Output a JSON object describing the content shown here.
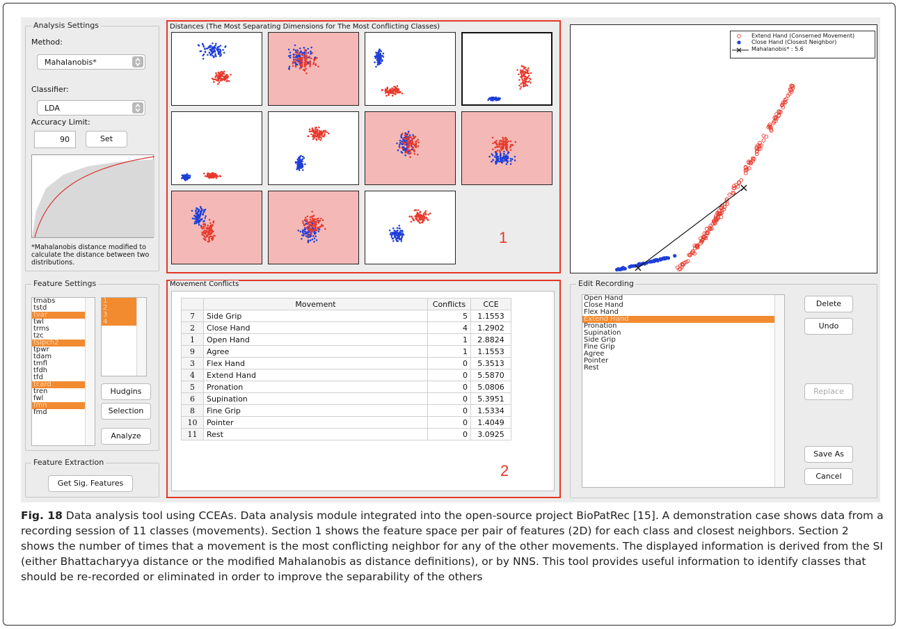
{
  "analysis": {
    "title": "Analysis Settings",
    "method_label": "Method:",
    "method_value": "Mahalanobis*",
    "classifier_label": "Classifier:",
    "classifier_value": "LDA",
    "accuracy_label": "Accuracy Limit:",
    "accuracy_value": "90",
    "set_button": "Set",
    "note": "*Mahalanobis distance modified to calculate the distance between two distributions."
  },
  "feature_settings": {
    "title": "Feature Settings",
    "features": [
      {
        "name": "tmabs",
        "selected": false
      },
      {
        "name": "tstd",
        "selected": false
      },
      {
        "name": "tvar",
        "selected": true
      },
      {
        "name": "twl",
        "selected": false
      },
      {
        "name": "trms",
        "selected": false
      },
      {
        "name": "tzc",
        "selected": false
      },
      {
        "name": "tslpch2",
        "selected": true
      },
      {
        "name": "tpwr",
        "selected": false
      },
      {
        "name": "tdam",
        "selected": false
      },
      {
        "name": "tmfl",
        "selected": false
      },
      {
        "name": "tfdh",
        "selected": false
      },
      {
        "name": "tfd",
        "selected": false
      },
      {
        "name": "tcard",
        "selected": true
      },
      {
        "name": "tren",
        "selected": false
      },
      {
        "name": "fwl",
        "selected": false
      },
      {
        "name": "fmn",
        "selected": true
      },
      {
        "name": "fmd",
        "selected": false
      }
    ],
    "selected_indices": [
      "1",
      "2",
      "3",
      "4"
    ],
    "hudgins_button": "Hudgins",
    "selection_button": "Selection",
    "analyze_button": "Analyze"
  },
  "feature_extraction": {
    "title": "Feature Extraction",
    "button": "Get Sig. Features"
  },
  "distances": {
    "title": "Distances (The Most Separating Dimensions for The Most Conflicting Classes)",
    "section_number": "1"
  },
  "mahalanobis_plot": {
    "legend": [
      "Extend Hand (Conserned Movement)",
      "Close Hand (Closest Neighbor)",
      "Mahalanobis* : 5.6"
    ],
    "colors": {
      "extend": "#e8392c",
      "close": "#1f3fd8",
      "line": "#111111"
    }
  },
  "movement_conflicts": {
    "title": "Movement Conflicts",
    "section_number": "2",
    "columns": [
      "",
      "Movement",
      "Conflicts",
      "CCE"
    ],
    "rows": [
      {
        "idx": "7",
        "movement": "Side Grip",
        "conflicts": "5",
        "cce": "1.1553"
      },
      {
        "idx": "2",
        "movement": "Close Hand",
        "conflicts": "4",
        "cce": "1.2902"
      },
      {
        "idx": "1",
        "movement": "Open Hand",
        "conflicts": "1",
        "cce": "2.8824"
      },
      {
        "idx": "9",
        "movement": "Agree",
        "conflicts": "1",
        "cce": "1.1553"
      },
      {
        "idx": "3",
        "movement": "Flex Hand",
        "conflicts": "0",
        "cce": "5.3513"
      },
      {
        "idx": "4",
        "movement": "Extend Hand",
        "conflicts": "0",
        "cce": "5.5870"
      },
      {
        "idx": "5",
        "movement": "Pronation",
        "conflicts": "0",
        "cce": "5.0806"
      },
      {
        "idx": "6",
        "movement": "Supination",
        "conflicts": "0",
        "cce": "5.3951"
      },
      {
        "idx": "8",
        "movement": "Fine Grip",
        "conflicts": "0",
        "cce": "1.5334"
      },
      {
        "idx": "10",
        "movement": "Pointer",
        "conflicts": "0",
        "cce": "1.4049"
      },
      {
        "idx": "11",
        "movement": "Rest",
        "conflicts": "0",
        "cce": "3.0925"
      }
    ]
  },
  "edit_recording": {
    "title": "Edit Recording",
    "items": [
      {
        "name": "Open Hand",
        "selected": false
      },
      {
        "name": "Close Hand",
        "selected": false
      },
      {
        "name": "Flex Hand",
        "selected": false
      },
      {
        "name": "Extend Hand",
        "selected": true
      },
      {
        "name": "Pronation",
        "selected": false
      },
      {
        "name": "Supination",
        "selected": false
      },
      {
        "name": "Side Grip",
        "selected": false
      },
      {
        "name": "Fine Grip",
        "selected": false
      },
      {
        "name": "Agree",
        "selected": false
      },
      {
        "name": "Pointer",
        "selected": false
      },
      {
        "name": "Rest",
        "selected": false
      }
    ],
    "delete_button": "Delete",
    "undo_button": "Undo",
    "replace_button": "Replace",
    "save_as_button": "Save As",
    "cancel_button": "Cancel"
  },
  "caption": {
    "fig_label": "Fig. 18",
    "text": " Data analysis tool using CCEAs. Data analysis module integrated into the open-source project BioPatRec [15]. A demonstration case shows data from a recording session of 11 classes (movements). Section 1 shows the feature space per pair of features (2D) for each class and closest neighbors. Section 2 shows the number of times that a movement is the most conflicting neighbor for any of the other movements. The displayed information is derived from the SI (either Bhattacharyya distance or the modified Mahalanobis as distance definitions), or by NNS. This tool provides useful information to identify classes that should be re-recorded or eliminated in order to improve the separability of the others"
  }
}
